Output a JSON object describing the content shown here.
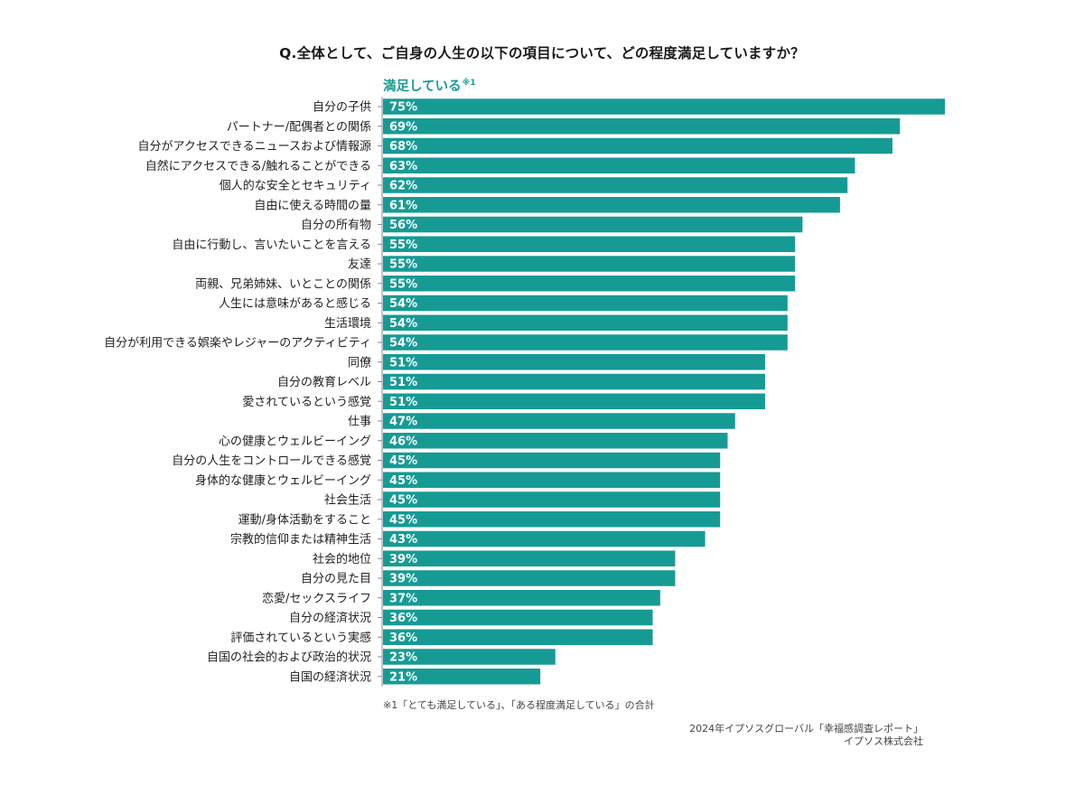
{
  "colors": {
    "bar": "#169b94",
    "accent_text": "#169b94",
    "axis": "#8a8a8a",
    "bar_label": "#ffffff",
    "category_label": "#222222"
  },
  "chart_data": {
    "type": "bar",
    "orientation": "horizontal",
    "title": "Q.全体として、ご自身の人生の以下の項目について、どの程度満足していますか？",
    "series_label": "満足している",
    "series_label_note_mark": "※1",
    "value_format": "percent",
    "xlim": [
      0,
      75
    ],
    "grid": false,
    "categories": [
      "自分の子供",
      "パートナー/配偶者との関係",
      "自分がアクセスできるニュースおよび情報源",
      "自然にアクセスできる/触れることができる",
      "個人的な安全とセキュリティ",
      "自由に使える時間の量",
      "自分の所有物",
      "自由に行動し、言いたいことを言える",
      "友達",
      "両親、兄弟姉妹、いとことの関係",
      "人生には意味があると感じる",
      "生活環境",
      "自分が利用できる娯楽やレジャーのアクティビティ",
      "同僚",
      "自分の教育レベル",
      "愛されているという感覚",
      "仕事",
      "心の健康とウェルビーイング",
      "自分の人生をコントロールできる感覚",
      "身体的な健康とウェルビーイング",
      "社会生活",
      "運動/身体活動をすること",
      "宗教的信仰または精神生活",
      "社会的地位",
      "自分の見た目",
      "恋愛/セックスライフ",
      "自分の経済状況",
      "評価されているという実感",
      "自国の社会的および政治的状況",
      "自国の経済状況"
    ],
    "values": [
      75,
      69,
      68,
      63,
      62,
      61,
      56,
      55,
      55,
      55,
      54,
      54,
      54,
      51,
      51,
      51,
      47,
      46,
      45,
      45,
      45,
      45,
      43,
      39,
      39,
      37,
      36,
      36,
      23,
      21
    ]
  },
  "footnote": "※1「とても満足している」、「ある程度満足している」の合計",
  "source": {
    "line1": "2024年イプソスグローバル「幸福感調査レポート」",
    "line2": "イプソス株式会社"
  }
}
